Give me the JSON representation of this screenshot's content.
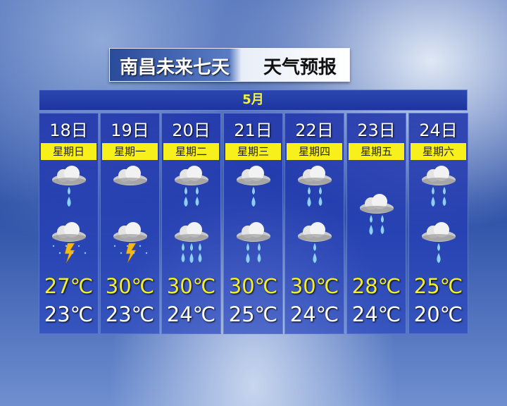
{
  "header": {
    "title_city": "南昌未来七天",
    "title_rest": "天气预报"
  },
  "month": "5月",
  "days": [
    {
      "date": "18日",
      "weekday": "星期日",
      "icons": [
        "light-rain",
        "thunderstorm"
      ],
      "high": "27℃",
      "low": "23℃"
    },
    {
      "date": "19日",
      "weekday": "星期一",
      "icons": [
        "cloudy",
        "thunderstorm"
      ],
      "high": "30℃",
      "low": "23℃"
    },
    {
      "date": "20日",
      "weekday": "星期二",
      "icons": [
        "moderate-rain",
        "heavy-rain"
      ],
      "high": "30℃",
      "low": "24℃"
    },
    {
      "date": "21日",
      "weekday": "星期三",
      "icons": [
        "light-rain",
        "moderate-rain"
      ],
      "high": "30℃",
      "low": "25℃"
    },
    {
      "date": "22日",
      "weekday": "星期四",
      "icons": [
        "moderate-rain",
        "light-rain"
      ],
      "high": "30℃",
      "low": "24℃"
    },
    {
      "date": "23日",
      "weekday": "星期五",
      "icons": [
        "moderate-rain"
      ],
      "high": "28℃",
      "low": "24℃"
    },
    {
      "date": "24日",
      "weekday": "星期六",
      "icons": [
        "moderate-rain",
        "light-rain"
      ],
      "high": "25℃",
      "low": "20℃"
    }
  ],
  "colors": {
    "high": "#f4ee2a",
    "weekday_bg": "#f7f01a",
    "month_text": "#f5f04a"
  }
}
